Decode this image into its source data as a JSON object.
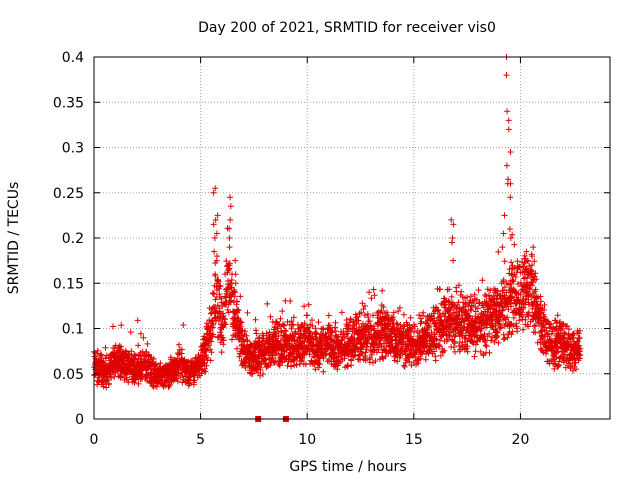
{
  "chart_data": {
    "type": "scatter",
    "title": "Day 200 of 2021, SRMTID for receiver vis0",
    "xlabel": "GPS time / hours",
    "ylabel": "SRMTID / TECUs",
    "xlim": [
      0,
      24.2
    ],
    "ylim": [
      0,
      0.4
    ],
    "x_ticks": [
      0,
      5,
      10,
      15,
      20
    ],
    "x_tick_labels": [
      "0",
      "5",
      "10",
      "15",
      "20"
    ],
    "y_ticks": [
      0,
      0.05,
      0.1,
      0.15,
      0.2,
      0.25,
      0.3,
      0.35,
      0.4
    ],
    "y_tick_labels": [
      "0",
      "0.05",
      "0.1",
      "0.15",
      "0.2",
      "0.25",
      "0.3",
      "0.35",
      "0.4"
    ],
    "grid": true,
    "marker": "+",
    "color": "#e00000",
    "zero_markers_x": [
      7.7,
      9.0
    ],
    "profile": [
      [
        0.0,
        0.06
      ],
      [
        0.5,
        0.05
      ],
      [
        1.0,
        0.065
      ],
      [
        1.5,
        0.06
      ],
      [
        2.0,
        0.055
      ],
      [
        2.5,
        0.06
      ],
      [
        3.0,
        0.048
      ],
      [
        3.5,
        0.05
      ],
      [
        4.0,
        0.062
      ],
      [
        4.5,
        0.05
      ],
      [
        5.0,
        0.06
      ],
      [
        5.5,
        0.095
      ],
      [
        5.7,
        0.15
      ],
      [
        6.0,
        0.1
      ],
      [
        6.3,
        0.15
      ],
      [
        6.6,
        0.12
      ],
      [
        7.0,
        0.075
      ],
      [
        7.5,
        0.065
      ],
      [
        8.0,
        0.075
      ],
      [
        8.5,
        0.085
      ],
      [
        9.0,
        0.08
      ],
      [
        9.5,
        0.085
      ],
      [
        10.0,
        0.09
      ],
      [
        10.5,
        0.075
      ],
      [
        11.0,
        0.08
      ],
      [
        11.5,
        0.075
      ],
      [
        12.0,
        0.085
      ],
      [
        12.5,
        0.09
      ],
      [
        13.0,
        0.085
      ],
      [
        13.5,
        0.095
      ],
      [
        14.0,
        0.09
      ],
      [
        14.5,
        0.085
      ],
      [
        15.0,
        0.08
      ],
      [
        15.5,
        0.09
      ],
      [
        16.0,
        0.095
      ],
      [
        16.5,
        0.11
      ],
      [
        17.0,
        0.11
      ],
      [
        17.5,
        0.11
      ],
      [
        18.0,
        0.1
      ],
      [
        18.5,
        0.11
      ],
      [
        19.0,
        0.12
      ],
      [
        19.5,
        0.13
      ],
      [
        20.0,
        0.14
      ],
      [
        20.5,
        0.145
      ],
      [
        21.0,
        0.1
      ],
      [
        21.5,
        0.08
      ],
      [
        22.0,
        0.085
      ],
      [
        22.5,
        0.075
      ],
      [
        22.8,
        0.08
      ]
    ],
    "spikes": [
      {
        "x": 5.65,
        "values": [
          0.255,
          0.25,
          0.22,
          0.215,
          0.2,
          0.185,
          0.16
        ]
      },
      {
        "x": 5.8,
        "values": [
          0.225,
          0.205,
          0.18
        ]
      },
      {
        "x": 6.4,
        "values": [
          0.245,
          0.235,
          0.22,
          0.2,
          0.19,
          0.17
        ]
      },
      {
        "x": 6.6,
        "values": [
          0.175,
          0.16,
          0.15
        ]
      },
      {
        "x": 16.8,
        "values": [
          0.22,
          0.215,
          0.2,
          0.195,
          0.175
        ]
      },
      {
        "x": 19.4,
        "values": [
          0.4,
          0.38,
          0.34,
          0.33,
          0.32,
          0.28,
          0.26,
          0.265
        ]
      },
      {
        "x": 19.55,
        "values": [
          0.295,
          0.26,
          0.245,
          0.21,
          0.2
        ]
      },
      {
        "x": 19.2,
        "values": [
          0.225,
          0.205,
          0.19
        ]
      },
      {
        "x": 20.3,
        "values": [
          0.185,
          0.175,
          0.165,
          0.16
        ]
      },
      {
        "x": 20.6,
        "values": [
          0.19,
          0.18,
          0.17
        ]
      }
    ]
  }
}
